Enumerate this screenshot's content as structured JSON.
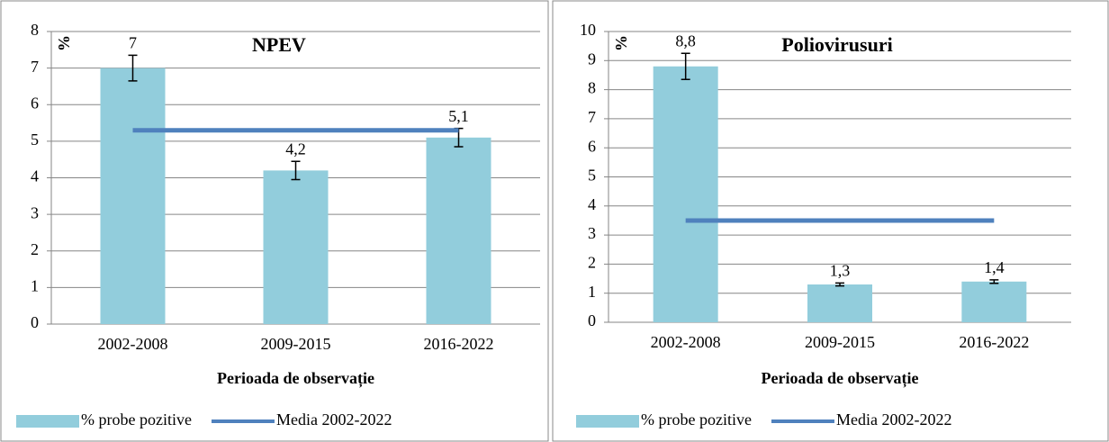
{
  "chart_data": [
    {
      "type": "bar",
      "title": "NPEV",
      "y_label": "%",
      "x_label": "Perioada de observație",
      "categories": [
        "2002-2008",
        "2009-2015",
        "2016-2022"
      ],
      "series": [
        {
          "name": "% probe pozitive",
          "color": "#92cddc",
          "values": [
            7,
            4.2,
            5.1
          ],
          "errors": [
            0.35,
            0.25,
            0.25
          ],
          "value_labels": [
            "7",
            "4,2",
            "5,1"
          ]
        },
        {
          "name": "Media 2002-2022",
          "color": "#4f81bd",
          "type": "line",
          "values": [
            5.3,
            5.3,
            5.3
          ]
        }
      ],
      "ylim": [
        0,
        8
      ],
      "yticks": [
        0,
        1,
        2,
        3,
        4,
        5,
        6,
        7,
        8
      ],
      "grid": true,
      "legend": "bottom"
    },
    {
      "type": "bar",
      "title": "Poliovirusuri",
      "y_label": "%",
      "x_label": "Perioada de observație",
      "categories": [
        "2002-2008",
        "2009-2015",
        "2016-2022"
      ],
      "series": [
        {
          "name": "% probe pozitive",
          "color": "#92cddc",
          "values": [
            8.8,
            1.3,
            1.4
          ],
          "errors": [
            0.45,
            0.05,
            0.06
          ],
          "value_labels": [
            "8,8",
            "1,3",
            "1,4"
          ]
        },
        {
          "name": "Media 2002-2022",
          "color": "#4f81bd",
          "type": "line",
          "values": [
            3.5,
            3.5,
            3.5
          ]
        }
      ],
      "ylim": [
        0,
        10
      ],
      "yticks": [
        0,
        1,
        2,
        3,
        4,
        5,
        6,
        7,
        8,
        9,
        10
      ],
      "grid": true,
      "legend": "bottom"
    }
  ]
}
